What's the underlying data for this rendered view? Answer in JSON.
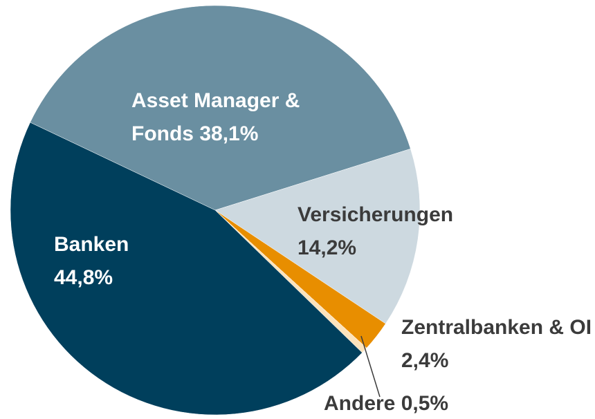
{
  "chart_data": {
    "type": "pie",
    "categories": [
      "Asset Manager &",
      "Versicherungen",
      "Zentralbanken & OI",
      "Andere",
      "Banken"
    ],
    "values": [
      38.1,
      14.2,
      2.4,
      0.5,
      44.8
    ],
    "value_labels": [
      "Fonds 38,1%",
      "14,2%",
      "2,4%",
      "0,5%",
      "44,8%"
    ],
    "colors": [
      "#6a8fa1",
      "#cdd9e0",
      "#e88e00",
      "#fde3bb",
      "#003f5c"
    ]
  }
}
